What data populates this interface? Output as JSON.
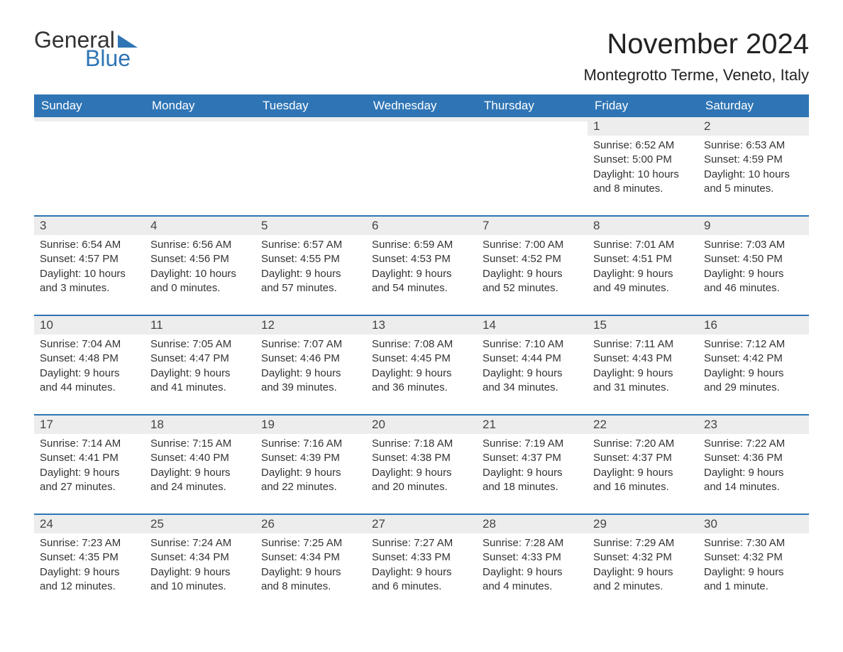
{
  "logo": {
    "text_general": "General",
    "text_blue": "Blue",
    "triangle_color": "#2f75b5",
    "general_color": "#333333",
    "blue_color": "#2f75b5"
  },
  "title": "November 2024",
  "location": "Montegrotto Terme, Veneto, Italy",
  "colors": {
    "header_bg": "#2f75b5",
    "header_text": "#ffffff",
    "daynum_bg": "#ededed",
    "body_text": "#333333",
    "rule": "#2f75b5",
    "page_bg": "#ffffff"
  },
  "typography": {
    "month_title_fontsize": 40,
    "location_fontsize": 22,
    "header_fontsize": 17,
    "daynum_fontsize": 17,
    "body_fontsize": 15,
    "font_family": "Arial"
  },
  "layout": {
    "columns": 7,
    "rows": 5
  },
  "day_headers": [
    "Sunday",
    "Monday",
    "Tuesday",
    "Wednesday",
    "Thursday",
    "Friday",
    "Saturday"
  ],
  "weeks": [
    [
      {
        "empty": true
      },
      {
        "empty": true
      },
      {
        "empty": true
      },
      {
        "empty": true
      },
      {
        "empty": true
      },
      {
        "day": "1",
        "sunrise": "Sunrise: 6:52 AM",
        "sunset": "Sunset: 5:00 PM",
        "daylight": "Daylight: 10 hours and 8 minutes."
      },
      {
        "day": "2",
        "sunrise": "Sunrise: 6:53 AM",
        "sunset": "Sunset: 4:59 PM",
        "daylight": "Daylight: 10 hours and 5 minutes."
      }
    ],
    [
      {
        "day": "3",
        "sunrise": "Sunrise: 6:54 AM",
        "sunset": "Sunset: 4:57 PM",
        "daylight": "Daylight: 10 hours and 3 minutes."
      },
      {
        "day": "4",
        "sunrise": "Sunrise: 6:56 AM",
        "sunset": "Sunset: 4:56 PM",
        "daylight": "Daylight: 10 hours and 0 minutes."
      },
      {
        "day": "5",
        "sunrise": "Sunrise: 6:57 AM",
        "sunset": "Sunset: 4:55 PM",
        "daylight": "Daylight: 9 hours and 57 minutes."
      },
      {
        "day": "6",
        "sunrise": "Sunrise: 6:59 AM",
        "sunset": "Sunset: 4:53 PM",
        "daylight": "Daylight: 9 hours and 54 minutes."
      },
      {
        "day": "7",
        "sunrise": "Sunrise: 7:00 AM",
        "sunset": "Sunset: 4:52 PM",
        "daylight": "Daylight: 9 hours and 52 minutes."
      },
      {
        "day": "8",
        "sunrise": "Sunrise: 7:01 AM",
        "sunset": "Sunset: 4:51 PM",
        "daylight": "Daylight: 9 hours and 49 minutes."
      },
      {
        "day": "9",
        "sunrise": "Sunrise: 7:03 AM",
        "sunset": "Sunset: 4:50 PM",
        "daylight": "Daylight: 9 hours and 46 minutes."
      }
    ],
    [
      {
        "day": "10",
        "sunrise": "Sunrise: 7:04 AM",
        "sunset": "Sunset: 4:48 PM",
        "daylight": "Daylight: 9 hours and 44 minutes."
      },
      {
        "day": "11",
        "sunrise": "Sunrise: 7:05 AM",
        "sunset": "Sunset: 4:47 PM",
        "daylight": "Daylight: 9 hours and 41 minutes."
      },
      {
        "day": "12",
        "sunrise": "Sunrise: 7:07 AM",
        "sunset": "Sunset: 4:46 PM",
        "daylight": "Daylight: 9 hours and 39 minutes."
      },
      {
        "day": "13",
        "sunrise": "Sunrise: 7:08 AM",
        "sunset": "Sunset: 4:45 PM",
        "daylight": "Daylight: 9 hours and 36 minutes."
      },
      {
        "day": "14",
        "sunrise": "Sunrise: 7:10 AM",
        "sunset": "Sunset: 4:44 PM",
        "daylight": "Daylight: 9 hours and 34 minutes."
      },
      {
        "day": "15",
        "sunrise": "Sunrise: 7:11 AM",
        "sunset": "Sunset: 4:43 PM",
        "daylight": "Daylight: 9 hours and 31 minutes."
      },
      {
        "day": "16",
        "sunrise": "Sunrise: 7:12 AM",
        "sunset": "Sunset: 4:42 PM",
        "daylight": "Daylight: 9 hours and 29 minutes."
      }
    ],
    [
      {
        "day": "17",
        "sunrise": "Sunrise: 7:14 AM",
        "sunset": "Sunset: 4:41 PM",
        "daylight": "Daylight: 9 hours and 27 minutes."
      },
      {
        "day": "18",
        "sunrise": "Sunrise: 7:15 AM",
        "sunset": "Sunset: 4:40 PM",
        "daylight": "Daylight: 9 hours and 24 minutes."
      },
      {
        "day": "19",
        "sunrise": "Sunrise: 7:16 AM",
        "sunset": "Sunset: 4:39 PM",
        "daylight": "Daylight: 9 hours and 22 minutes."
      },
      {
        "day": "20",
        "sunrise": "Sunrise: 7:18 AM",
        "sunset": "Sunset: 4:38 PM",
        "daylight": "Daylight: 9 hours and 20 minutes."
      },
      {
        "day": "21",
        "sunrise": "Sunrise: 7:19 AM",
        "sunset": "Sunset: 4:37 PM",
        "daylight": "Daylight: 9 hours and 18 minutes."
      },
      {
        "day": "22",
        "sunrise": "Sunrise: 7:20 AM",
        "sunset": "Sunset: 4:37 PM",
        "daylight": "Daylight: 9 hours and 16 minutes."
      },
      {
        "day": "23",
        "sunrise": "Sunrise: 7:22 AM",
        "sunset": "Sunset: 4:36 PM",
        "daylight": "Daylight: 9 hours and 14 minutes."
      }
    ],
    [
      {
        "day": "24",
        "sunrise": "Sunrise: 7:23 AM",
        "sunset": "Sunset: 4:35 PM",
        "daylight": "Daylight: 9 hours and 12 minutes."
      },
      {
        "day": "25",
        "sunrise": "Sunrise: 7:24 AM",
        "sunset": "Sunset: 4:34 PM",
        "daylight": "Daylight: 9 hours and 10 minutes."
      },
      {
        "day": "26",
        "sunrise": "Sunrise: 7:25 AM",
        "sunset": "Sunset: 4:34 PM",
        "daylight": "Daylight: 9 hours and 8 minutes."
      },
      {
        "day": "27",
        "sunrise": "Sunrise: 7:27 AM",
        "sunset": "Sunset: 4:33 PM",
        "daylight": "Daylight: 9 hours and 6 minutes."
      },
      {
        "day": "28",
        "sunrise": "Sunrise: 7:28 AM",
        "sunset": "Sunset: 4:33 PM",
        "daylight": "Daylight: 9 hours and 4 minutes."
      },
      {
        "day": "29",
        "sunrise": "Sunrise: 7:29 AM",
        "sunset": "Sunset: 4:32 PM",
        "daylight": "Daylight: 9 hours and 2 minutes."
      },
      {
        "day": "30",
        "sunrise": "Sunrise: 7:30 AM",
        "sunset": "Sunset: 4:32 PM",
        "daylight": "Daylight: 9 hours and 1 minute."
      }
    ]
  ]
}
